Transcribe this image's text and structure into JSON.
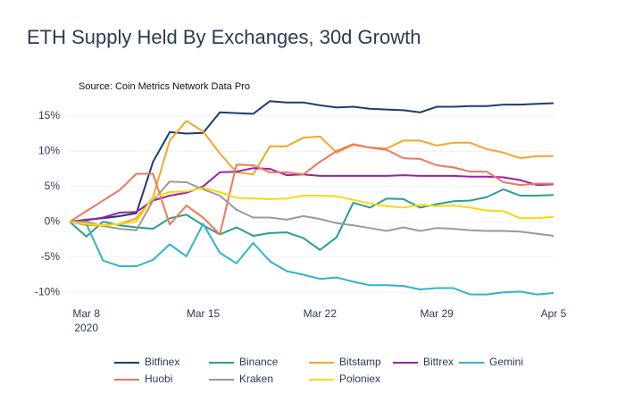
{
  "chart_data": {
    "type": "line",
    "title": "ETH Supply Held By Exchanges, 30d Growth",
    "subtitle": "Source: Coin Metrics Network Data Pro",
    "x": [
      "2020-03-07",
      "2020-03-08",
      "2020-03-09",
      "2020-03-10",
      "2020-03-11",
      "2020-03-12",
      "2020-03-13",
      "2020-03-14",
      "2020-03-15",
      "2020-03-16",
      "2020-03-17",
      "2020-03-18",
      "2020-03-19",
      "2020-03-20",
      "2020-03-21",
      "2020-03-22",
      "2020-03-23",
      "2020-03-24",
      "2020-03-25",
      "2020-03-26",
      "2020-03-27",
      "2020-03-28",
      "2020-03-29",
      "2020-03-30",
      "2020-03-31",
      "2020-04-01",
      "2020-04-02",
      "2020-04-03",
      "2020-04-04",
      "2020-04-05"
    ],
    "xlim": [
      "2020-03-07",
      "2020-04-05"
    ],
    "xticks": [
      {
        "value": "2020-03-08",
        "label": "Mar 8"
      },
      {
        "value": "2020-03-15",
        "label": "Mar 15"
      },
      {
        "value": "2020-03-22",
        "label": "Mar 22"
      },
      {
        "value": "2020-03-29",
        "label": "Mar 29"
      },
      {
        "value": "2020-04-05",
        "label": "Apr 5"
      }
    ],
    "x_year": "2020",
    "ylim": [
      -12,
      17.5
    ],
    "yticks": [
      {
        "value": -10,
        "label": "-10%"
      },
      {
        "value": -5,
        "label": "-5%"
      },
      {
        "value": 0,
        "label": "0%"
      },
      {
        "value": 5,
        "label": "5%"
      },
      {
        "value": 10,
        "label": "10%"
      },
      {
        "value": 15,
        "label": "15%"
      }
    ],
    "grid": true,
    "legend": "bottom",
    "series": [
      {
        "name": "Bitfinex",
        "color": "#1f3c6e",
        "values": [
          0,
          0.3,
          0.5,
          0.8,
          1.2,
          8.5,
          12.7,
          12.5,
          12.6,
          15.5,
          15.4,
          15.3,
          17.1,
          16.9,
          16.9,
          16.5,
          16.2,
          16.3,
          16.0,
          15.9,
          15.8,
          15.5,
          16.3,
          16.3,
          16.4,
          16.4,
          16.6,
          16.6,
          16.7,
          16.8
        ]
      },
      {
        "name": "Binance",
        "color": "#2a9d8f",
        "values": [
          0,
          -2.1,
          0,
          -0.5,
          -0.8,
          -1,
          0.5,
          1,
          -0.5,
          -1.8,
          -0.8,
          -2,
          -1.6,
          -1.5,
          -2.3,
          -4,
          -2.2,
          2.7,
          2,
          3.3,
          3.2,
          2,
          2.5,
          2.9,
          3,
          3.5,
          4.6,
          3.7,
          3.7,
          3.8
        ]
      },
      {
        "name": "Bitstamp",
        "color": "#f4a62a",
        "values": [
          0,
          -0.5,
          -0.5,
          -0.3,
          0.5,
          3.5,
          11.5,
          14.3,
          12.8,
          9.7,
          7,
          6.7,
          10.7,
          10.7,
          11.9,
          12.1,
          9.8,
          10.9,
          10.5,
          10.4,
          11.5,
          11.5,
          10.8,
          11.2,
          11.2,
          10.3,
          9.8,
          9,
          9.3,
          9.3
        ]
      },
      {
        "name": "Bittrex",
        "color": "#9b1fa8",
        "values": [
          0,
          0.2,
          0.6,
          1.3,
          1.4,
          3,
          3.7,
          4.1,
          5,
          7,
          7.1,
          7.6,
          7.5,
          6.6,
          6.7,
          6.5,
          6.5,
          6.5,
          6.5,
          6.5,
          6.6,
          6.5,
          6.5,
          6.5,
          6.4,
          6.4,
          6.3,
          5.9,
          5.2,
          5.3
        ]
      },
      {
        "name": "Gemini",
        "color": "#2fb3cf",
        "values": [
          0,
          -0.3,
          -5.5,
          -6.3,
          -6.3,
          -5.4,
          -3.2,
          -4.9,
          -0.3,
          -4.4,
          -5.9,
          -3,
          -5.6,
          -7,
          -7.5,
          -8.1,
          -7.9,
          -8.5,
          -9,
          -9,
          -9.1,
          -9.6,
          -9.4,
          -9.4,
          -10.3,
          -10.3,
          -10,
          -9.9,
          -10.3,
          -10.1
        ]
      },
      {
        "name": "Huobi",
        "color": "#f0775a",
        "values": [
          0,
          1.5,
          3,
          4.5,
          6.8,
          6.8,
          -0.4,
          2.3,
          0.6,
          -1.8,
          8.1,
          8,
          7,
          7,
          6.7,
          8.5,
          10,
          11,
          10.5,
          10.2,
          9,
          8.9,
          8,
          7.7,
          7.1,
          7.1,
          5.6,
          5.2,
          5.4,
          5.4
        ]
      },
      {
        "name": "Kraken",
        "color": "#9a9a9a",
        "values": [
          0,
          0,
          -0.6,
          -1,
          -1.2,
          3,
          5.7,
          5.6,
          4.6,
          3.7,
          1.7,
          0.6,
          0.6,
          0.3,
          0.8,
          0.4,
          -0.2,
          -0.5,
          -0.9,
          -1.3,
          -0.8,
          -1.3,
          -0.9,
          -1,
          -1.2,
          -1.3,
          -1.3,
          -1.4,
          -1.7,
          -2
        ]
      },
      {
        "name": "Poloniex",
        "color": "#f5d90a",
        "values": [
          0,
          -0.3,
          -0.5,
          -0.3,
          0,
          3.5,
          4.2,
          4.3,
          4.8,
          4.2,
          3.4,
          3.3,
          3.2,
          3.3,
          3.7,
          3.7,
          3.6,
          3.1,
          2.6,
          2.2,
          2,
          2.4,
          2.2,
          2.3,
          2,
          1.6,
          1.5,
          0.5,
          0.5,
          0.7
        ]
      }
    ]
  }
}
